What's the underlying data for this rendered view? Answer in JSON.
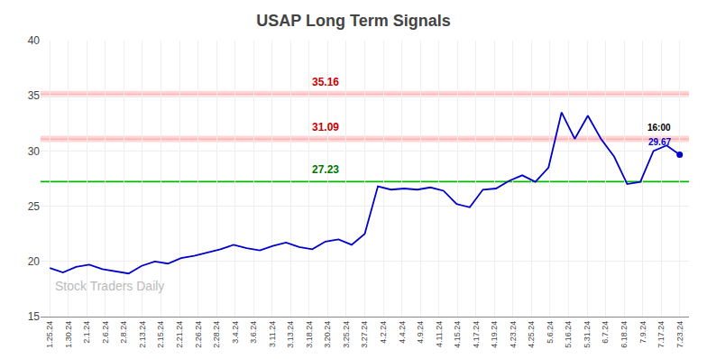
{
  "chart_data": {
    "type": "line",
    "title": "USAP Long Term Signals",
    "color": "#0000cc",
    "grid": true,
    "xlim": [
      -0.5,
      34.5
    ],
    "xticks": [
      {
        "value": 0,
        "label": "1.25.24"
      },
      {
        "value": 1,
        "label": "1.30.24"
      },
      {
        "value": 2,
        "label": "2.1.24"
      },
      {
        "value": 3,
        "label": "2.6.24"
      },
      {
        "value": 4,
        "label": "2.8.24"
      },
      {
        "value": 5,
        "label": "2.13.24"
      },
      {
        "value": 6,
        "label": "2.15.24"
      },
      {
        "value": 7,
        "label": "2.21.24"
      },
      {
        "value": 8,
        "label": "2.26.24"
      },
      {
        "value": 9,
        "label": "2.28.24"
      },
      {
        "value": 10,
        "label": "3.4.24"
      },
      {
        "value": 11,
        "label": "3.6.24"
      },
      {
        "value": 12,
        "label": "3.11.24"
      },
      {
        "value": 13,
        "label": "3.13.24"
      },
      {
        "value": 14,
        "label": "3.18.24"
      },
      {
        "value": 15,
        "label": "3.20.24"
      },
      {
        "value": 16,
        "label": "3.25.24"
      },
      {
        "value": 17,
        "label": "3.27.24"
      },
      {
        "value": 18,
        "label": "4.2.24"
      },
      {
        "value": 19,
        "label": "4.4.24"
      },
      {
        "value": 20,
        "label": "4.9.24"
      },
      {
        "value": 21,
        "label": "4.11.24"
      },
      {
        "value": 22,
        "label": "4.15.24"
      },
      {
        "value": 23,
        "label": "4.17.24"
      },
      {
        "value": 24,
        "label": "4.19.24"
      },
      {
        "value": 25,
        "label": "4.23.24"
      },
      {
        "value": 26,
        "label": "4.25.24"
      },
      {
        "value": 27,
        "label": "5.6.24"
      },
      {
        "value": 28,
        "label": "5.16.24"
      },
      {
        "value": 29,
        "label": "5.31.24"
      },
      {
        "value": 30,
        "label": "6.7.24"
      },
      {
        "value": 31,
        "label": "6.18.24"
      },
      {
        "value": 32,
        "label": "7.9.24"
      },
      {
        "value": 33,
        "label": "7.17.24"
      },
      {
        "value": 34,
        "label": "7.23.24"
      }
    ],
    "ylim": [
      15,
      40
    ],
    "yticks": [
      15,
      20,
      25,
      30,
      35,
      40
    ],
    "x": [
      0,
      0.7083333333,
      1.4166666667,
      2.125,
      2.8333333333,
      3.5416666667,
      4.25,
      4.9583333333,
      5.6666666667,
      6.375,
      7.0833333333,
      7.7916666667,
      8.5,
      9.2083333333,
      9.9166666667,
      10.625,
      11.3333333333,
      12.0416666667,
      12.75,
      13.4583333333,
      14.1666666667,
      14.875,
      15.5833333333,
      16.2916666667,
      17,
      17.7083333333,
      18.4166666667,
      19.125,
      19.8333333333,
      20.5416666667,
      21.25,
      21.9583333333,
      22.6666666667,
      23.375,
      24.0833333333,
      24.7916666667,
      25.5,
      26.2083333333,
      26.9166666667,
      27.625,
      28.3333333333,
      29.0416666667,
      29.75,
      30.4583333333,
      31.1666666667,
      31.875,
      32.5833333333,
      33.2916666667,
      34
    ],
    "values": [
      19.4,
      19.0,
      19.5,
      19.7,
      19.3,
      19.1,
      18.9,
      19.6,
      20.0,
      19.8,
      20.3,
      20.5,
      20.8,
      21.1,
      21.5,
      21.2,
      21.0,
      21.4,
      21.7,
      21.3,
      21.1,
      21.8,
      22.0,
      21.5,
      22.5,
      26.8,
      26.5,
      26.6,
      26.5,
      26.7,
      26.4,
      25.2,
      24.9,
      26.5,
      26.6,
      27.3,
      27.8,
      27.2,
      28.5,
      33.5,
      31.1,
      33.2,
      31.1,
      29.5,
      27.0,
      27.2,
      30.0,
      30.5,
      29.67
    ],
    "reference_lines": [
      {
        "value": 35.16,
        "label": "35.16",
        "color": "#ffaaaa",
        "label_color": "#cc0000"
      },
      {
        "value": 31.09,
        "label": "31.09",
        "color": "#ffaaaa",
        "label_color": "#cc0000"
      },
      {
        "value": 27.23,
        "label": "27.23",
        "color": "#00bb00",
        "label_color": "#007700"
      }
    ],
    "annotations": [
      {
        "text": "16:00",
        "color": "#000000"
      },
      {
        "text": "29.67",
        "color": "#0000cc"
      }
    ],
    "watermark": {
      "text": "Stock Traders Daily",
      "color": "#bbbbbb"
    }
  }
}
